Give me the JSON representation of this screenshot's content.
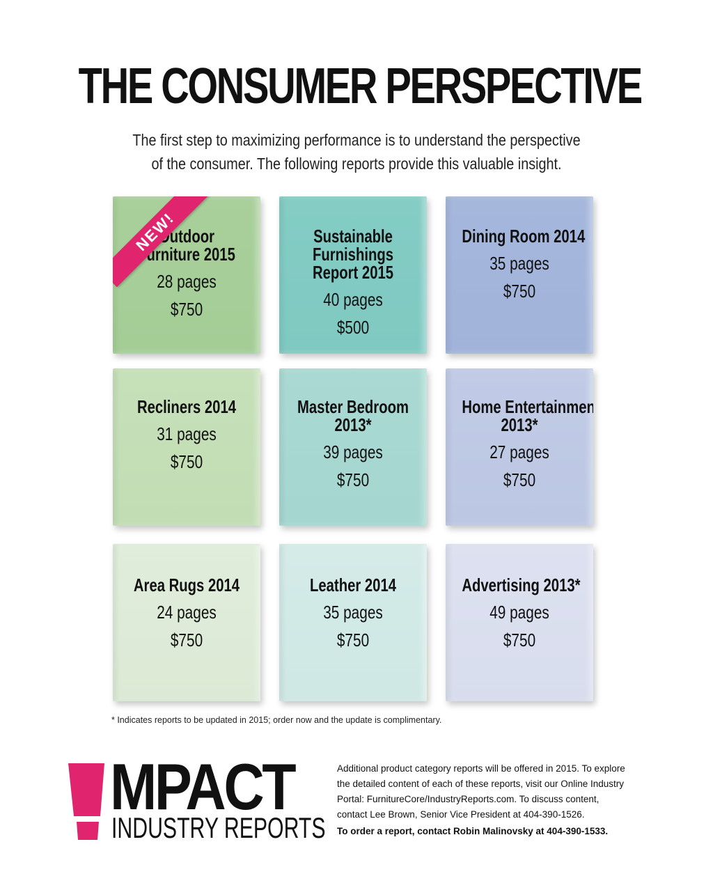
{
  "header": {
    "title": "THE CONSUMER PERSPECTIVE",
    "subtitle_line1": "The first step to maximizing performance is to understand the perspective",
    "subtitle_line2": "of the consumer. The following reports provide this valuable insight."
  },
  "badge": {
    "new_label": "NEW!",
    "color": "#e0246d"
  },
  "reports": [
    {
      "name_line1": "Outdoor",
      "name_line2": "Furniture 2015",
      "pages": "28 pages",
      "price": "$750",
      "color": "#a9cf9b"
    },
    {
      "name_line1": "Sustainable",
      "name_line2": "Furnishings",
      "name_line3": "Report 2015",
      "pages": "40 pages",
      "price": "$500",
      "color": "#84ccc4"
    },
    {
      "name_line1": "Dining Room 2014",
      "pages": "35 pages",
      "price": "$750",
      "color": "#a6b7dc"
    },
    {
      "name_line1": "Recliners 2014",
      "pages": "31 pages",
      "price": "$750",
      "color": "#c6e0b9"
    },
    {
      "name_line1": "Master Bedroom",
      "name_line2": "2013*",
      "pages": "39 pages",
      "price": "$750",
      "color": "#aad9d3"
    },
    {
      "name_line1": "Home Entertainment",
      "name_line2": "2013*",
      "pages": "27 pages",
      "price": "$750",
      "color": "#c1cbe6"
    },
    {
      "name_line1": "Area Rugs 2014",
      "pages": "24 pages",
      "price": "$750",
      "color": "#e0eddb"
    },
    {
      "name_line1": "Leather 2014",
      "pages": "35 pages",
      "price": "$750",
      "color": "#d4ebe8"
    },
    {
      "name_line1": "Advertising 2013*",
      "pages": "49 pages",
      "price": "$750",
      "color": "#dde1f0"
    }
  ],
  "footnote": "* Indicates reports to be updated in 2015; order now and the update is complimentary.",
  "logo": {
    "main": "MPACT",
    "sub": "INDUSTRY REPORTS",
    "accent": "#e0246d"
  },
  "info": {
    "line1": "Additional product category reports will be offered in 2015. To explore",
    "line2": "the detailed content of each of these reports, visit our Online Industry",
    "line3": "Portal: FurnitureCore/IndustryReports.com. To discuss content,",
    "line4": "contact Lee Brown, Senior Vice President at 404-390-1526.",
    "order": "To order a report, contact Robin Malinovsky at 404-390-1533."
  }
}
